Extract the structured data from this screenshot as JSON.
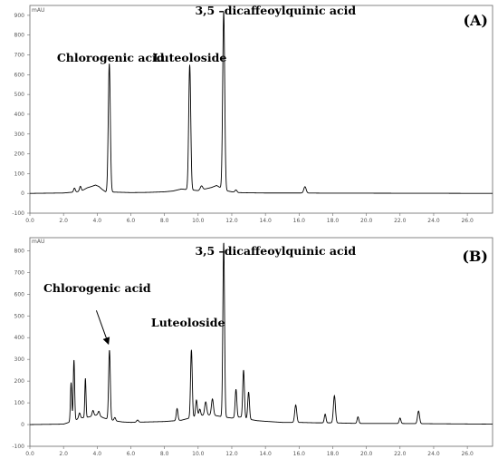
{
  "chart_data": [
    {
      "type": "line",
      "panel_label": "(A)",
      "y_unit": "mAU",
      "xlim": [
        0,
        27.5
      ],
      "ylim": [
        -100,
        950
      ],
      "x_ticks": [
        0.0,
        2.0,
        4.0,
        6.0,
        8.0,
        10.0,
        12.0,
        14.0,
        16.0,
        18.0,
        20.0,
        22.0,
        24.0,
        26.0
      ],
      "x_tick_labels": [
        "0.0",
        "2.0",
        "4.0",
        "6.0",
        "8.0",
        "10.0",
        "12.0",
        "14.0",
        "16.0",
        "18.0",
        "20.0",
        "22.0",
        "24.0",
        "26.0"
      ],
      "y_ticks": [
        -100,
        0,
        100,
        200,
        300,
        400,
        500,
        600,
        700,
        800,
        900
      ],
      "y_tick_labels": [
        "-100",
        "0",
        "100",
        "200",
        "300",
        "400",
        "500",
        "600",
        "700",
        "800",
        "900"
      ],
      "grid": false,
      "color": "#000000",
      "baseline": [
        [
          0,
          0
        ],
        [
          2.0,
          2
        ],
        [
          2.8,
          8
        ],
        [
          3.1,
          14
        ],
        [
          3.4,
          28
        ],
        [
          3.7,
          36
        ],
        [
          3.9,
          42
        ],
        [
          4.1,
          35
        ],
        [
          4.3,
          20
        ],
        [
          4.5,
          8
        ],
        [
          5.2,
          6
        ],
        [
          6.0,
          4
        ],
        [
          7.0,
          5
        ],
        [
          8.0,
          8
        ],
        [
          8.5,
          12
        ],
        [
          9.0,
          22
        ],
        [
          10.0,
          14
        ],
        [
          10.4,
          22
        ],
        [
          10.8,
          30
        ],
        [
          11.1,
          40
        ],
        [
          11.3,
          30
        ],
        [
          11.6,
          15
        ],
        [
          12.0,
          8
        ],
        [
          12.4,
          4
        ],
        [
          13.0,
          3
        ],
        [
          14.0,
          2
        ],
        [
          16.0,
          2
        ],
        [
          18.0,
          1
        ],
        [
          20.0,
          1
        ],
        [
          27.5,
          0
        ]
      ],
      "peaks": [
        {
          "rt": 2.65,
          "height": 20,
          "width": 0.05
        },
        {
          "rt": 3.0,
          "height": 24,
          "width": 0.05
        },
        {
          "rt": 4.72,
          "height": 650,
          "width": 0.06
        },
        {
          "rt": 9.5,
          "height": 632,
          "width": 0.06
        },
        {
          "rt": 10.2,
          "height": 20,
          "width": 0.07
        },
        {
          "rt": 11.52,
          "height": 900,
          "width": 0.06
        },
        {
          "rt": 12.25,
          "height": 12,
          "width": 0.06
        },
        {
          "rt": 16.35,
          "height": 32,
          "width": 0.07
        }
      ],
      "annotations": [
        {
          "text": "Chlorogenic acid",
          "x": 4.8,
          "y": 665
        },
        {
          "text": "Luteoloside",
          "x": 9.5,
          "y": 665
        },
        {
          "text": "3,5 –dicaffeoylquinic acid",
          "x": 14.6,
          "y": 905
        }
      ]
    },
    {
      "type": "line",
      "panel_label": "(B)",
      "y_unit": "mAU",
      "xlim": [
        0,
        27.5
      ],
      "ylim": [
        -100,
        860
      ],
      "x_ticks": [
        0.0,
        2.0,
        4.0,
        6.0,
        8.0,
        10.0,
        12.0,
        14.0,
        16.0,
        18.0,
        20.0,
        22.0,
        24.0,
        26.0
      ],
      "x_tick_labels": [
        "0.0",
        "2.0",
        "4.0",
        "6.0",
        "8.0",
        "10.0",
        "12.0",
        "14.0",
        "16.0",
        "18.0",
        "20.0",
        "22.0",
        "24.0",
        "26.0"
      ],
      "y_ticks": [
        -100,
        0,
        100,
        200,
        300,
        400,
        500,
        600,
        700,
        800
      ],
      "y_tick_labels": [
        "-100",
        "0",
        "100",
        "200",
        "300",
        "400",
        "500",
        "600",
        "700",
        "800"
      ],
      "grid": false,
      "color": "#000000",
      "baseline": [
        [
          0,
          0
        ],
        [
          2.0,
          2
        ],
        [
          2.5,
          15
        ],
        [
          3.0,
          30
        ],
        [
          3.5,
          35
        ],
        [
          4.0,
          45
        ],
        [
          4.4,
          30
        ],
        [
          5.0,
          18
        ],
        [
          5.5,
          12
        ],
        [
          6.0,
          10
        ],
        [
          7.0,
          12
        ],
        [
          8.0,
          14
        ],
        [
          9.0,
          20
        ],
        [
          9.5,
          30
        ],
        [
          10.0,
          40
        ],
        [
          10.5,
          45
        ],
        [
          11.0,
          42
        ],
        [
          11.5,
          35
        ],
        [
          12.0,
          30
        ],
        [
          12.5,
          35
        ],
        [
          13.0,
          25
        ],
        [
          13.5,
          18
        ],
        [
          14.0,
          15
        ],
        [
          15.0,
          10
        ],
        [
          16.0,
          10
        ],
        [
          17.0,
          8
        ],
        [
          18.0,
          8
        ],
        [
          19.0,
          6
        ],
        [
          20.0,
          5
        ],
        [
          22.0,
          5
        ],
        [
          23.5,
          4
        ],
        [
          27.5,
          2
        ]
      ],
      "peaks": [
        {
          "rt": 2.45,
          "height": 180,
          "width": 0.04
        },
        {
          "rt": 2.62,
          "height": 280,
          "width": 0.04
        },
        {
          "rt": 2.95,
          "height": 25,
          "width": 0.05
        },
        {
          "rt": 3.3,
          "height": 180,
          "width": 0.035
        },
        {
          "rt": 3.75,
          "height": 25,
          "width": 0.05
        },
        {
          "rt": 4.1,
          "height": 20,
          "width": 0.05
        },
        {
          "rt": 4.73,
          "height": 320,
          "width": 0.05
        },
        {
          "rt": 5.05,
          "height": 15,
          "width": 0.05
        },
        {
          "rt": 6.4,
          "height": 10,
          "width": 0.06
        },
        {
          "rt": 8.75,
          "height": 55,
          "width": 0.05
        },
        {
          "rt": 9.6,
          "height": 312,
          "width": 0.05
        },
        {
          "rt": 9.9,
          "height": 75,
          "width": 0.05
        },
        {
          "rt": 10.1,
          "height": 30,
          "width": 0.05
        },
        {
          "rt": 10.45,
          "height": 60,
          "width": 0.06
        },
        {
          "rt": 10.85,
          "height": 75,
          "width": 0.06
        },
        {
          "rt": 11.52,
          "height": 805,
          "width": 0.05
        },
        {
          "rt": 12.25,
          "height": 130,
          "width": 0.05
        },
        {
          "rt": 12.7,
          "height": 220,
          "width": 0.05
        },
        {
          "rt": 13.0,
          "height": 125,
          "width": 0.05
        },
        {
          "rt": 15.8,
          "height": 80,
          "width": 0.06
        },
        {
          "rt": 17.55,
          "height": 40,
          "width": 0.05
        },
        {
          "rt": 18.1,
          "height": 125,
          "width": 0.06
        },
        {
          "rt": 19.5,
          "height": 30,
          "width": 0.05
        },
        {
          "rt": 22.0,
          "height": 25,
          "width": 0.05
        },
        {
          "rt": 23.1,
          "height": 58,
          "width": 0.06
        }
      ],
      "annotations": [
        {
          "text": "Chlorogenic acid",
          "x": 4.0,
          "y": 610
        },
        {
          "text": "Luteoloside",
          "x": 9.4,
          "y": 450
        },
        {
          "text": "3,5 –dicaffeoylquinic acid",
          "x": 14.6,
          "y": 780
        }
      ],
      "arrow": {
        "from": [
          3.95,
          525
        ],
        "to": [
          4.65,
          375
        ]
      }
    }
  ]
}
